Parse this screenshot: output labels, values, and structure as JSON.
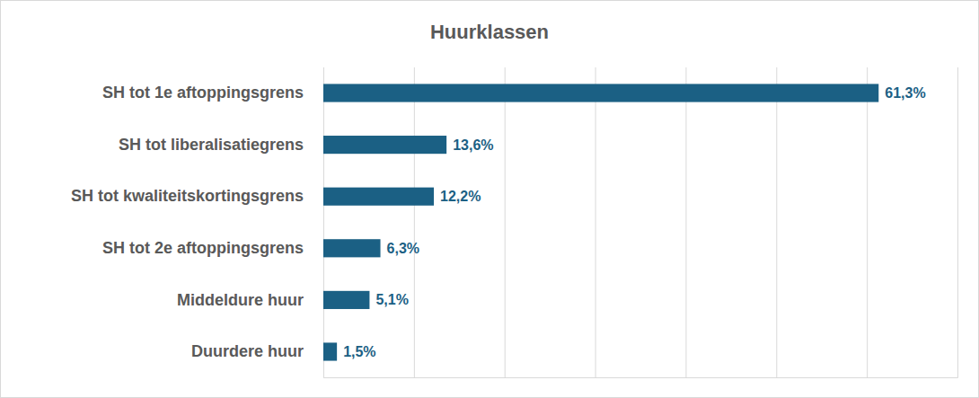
{
  "chart_data": {
    "type": "bar",
    "title": "Huurklassen",
    "orientation": "horizontal",
    "categories": [
      "SH tot 1e aftoppingsgrens",
      "SH tot liberalisatiegrens",
      "SH tot kwaliteitskortingsgrens",
      "SH tot 2e aftoppingsgrens",
      "Middeldure huur",
      "Duurdere huur"
    ],
    "values": [
      61.3,
      13.6,
      12.2,
      6.3,
      5.1,
      1.5
    ],
    "value_labels": [
      "61,3%",
      "13,6%",
      "12,2%",
      "6,3%",
      "5,1%",
      "1,5%"
    ],
    "color": "#1b6084",
    "xlim": [
      0,
      70
    ],
    "xticks": [
      0,
      10,
      20,
      30,
      40,
      50,
      60,
      70
    ],
    "grid": true,
    "data_labels": true,
    "tick_labels": "y"
  }
}
